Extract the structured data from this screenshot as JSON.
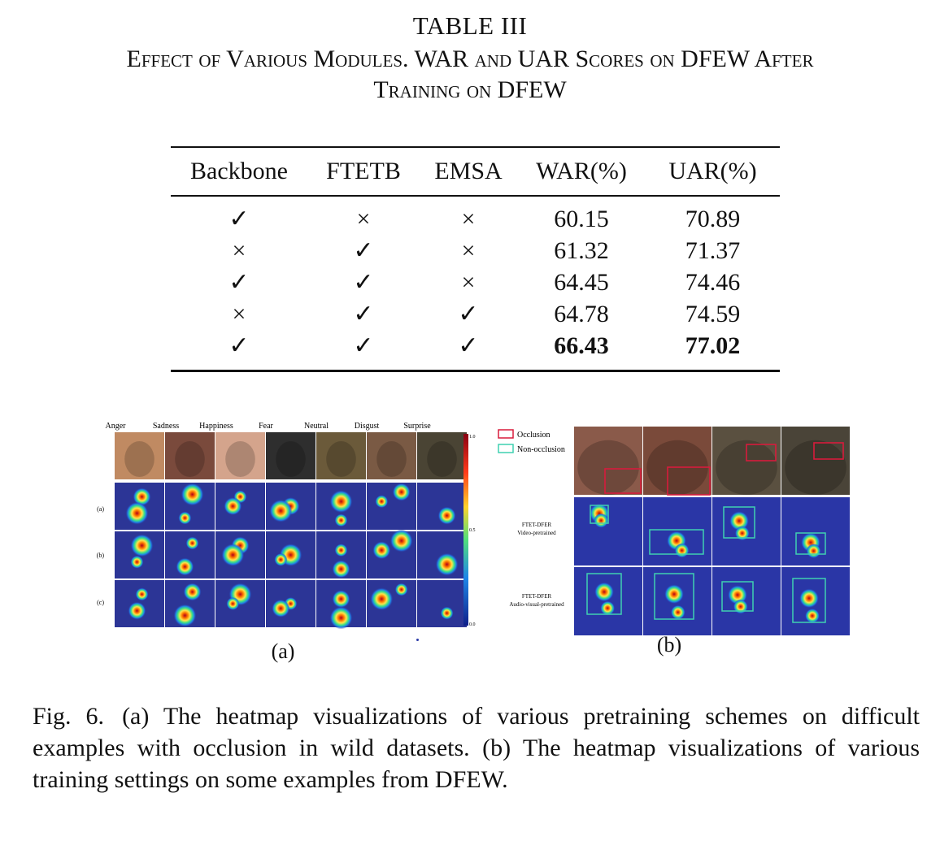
{
  "table_caption": {
    "number": "TABLE III",
    "line1": "Effect of Various Modules. WAR and UAR Scores on DFEW After",
    "line2": "Training on DFEW"
  },
  "table": {
    "headers": [
      "Backbone",
      "FTETB",
      "EMSA",
      "WAR(%)",
      "UAR(%)"
    ],
    "rows": [
      [
        "✓",
        "×",
        "×",
        "60.15",
        "70.89"
      ],
      [
        "×",
        "✓",
        "×",
        "61.32",
        "71.37"
      ],
      [
        "✓",
        "✓",
        "×",
        "64.45",
        "74.46"
      ],
      [
        "×",
        "✓",
        "✓",
        "64.78",
        "74.59"
      ],
      [
        "✓",
        "✓",
        "✓",
        "66.43",
        "77.02"
      ]
    ]
  },
  "figure_a": {
    "emotions": [
      "Anger",
      "Sadness",
      "Happiness",
      "Fear",
      "Neutral",
      "Disgust",
      "Surprise"
    ],
    "row_labels": [
      "(a)",
      "(b)",
      "(c)"
    ],
    "scale_ticks": [
      "1.0",
      "0.5",
      "0.0"
    ],
    "label": "(a)"
  },
  "figure_b": {
    "legend": [
      "Occlusion",
      "Non-occlusion"
    ],
    "row1_label_l1": "FTET-DFER",
    "row1_label_l2": "Video-pretrained",
    "row2_label_l1": "FTET-DFER",
    "row2_label_l2": "Audio-visual-pretrained",
    "label": "(b)",
    "colors": {
      "occlusion": "#d81b3c",
      "non_occlusion": "#3fd0b0"
    }
  },
  "figure_caption": {
    "prefix": "Fig. 6.",
    "text": "(a) The heatmap visualizations of various pretraining schemes on difficult examples with occlusion in wild datasets. (b) The heatmap visualizations of various training settings on some examples from DFEW."
  }
}
